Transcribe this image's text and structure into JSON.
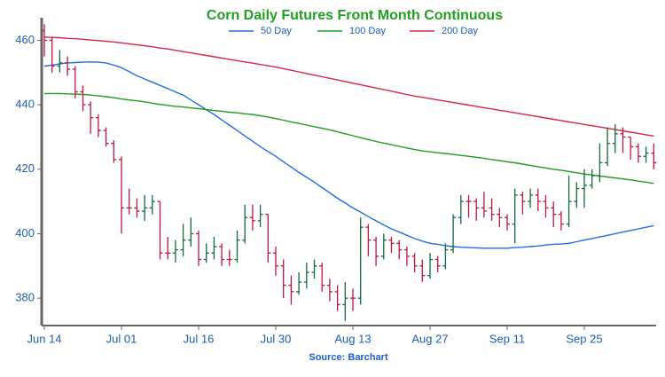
{
  "chart_data": {
    "type": "ohlc",
    "title": "Corn Daily Futures Front Month Continuous",
    "source": "Source: Barchart",
    "categories": [
      "Jun 14",
      null,
      null,
      null,
      null,
      null,
      null,
      null,
      null,
      null,
      "Jul 01",
      null,
      null,
      null,
      null,
      null,
      null,
      null,
      null,
      null,
      "Jul 16",
      null,
      null,
      null,
      null,
      null,
      null,
      null,
      null,
      null,
      "Jul 30",
      null,
      null,
      null,
      null,
      null,
      null,
      null,
      null,
      null,
      "Aug 13",
      null,
      null,
      null,
      null,
      null,
      null,
      null,
      null,
      null,
      "Aug 27",
      null,
      null,
      null,
      null,
      null,
      null,
      null,
      null,
      null,
      "Sep 11",
      null,
      null,
      null,
      null,
      null,
      null,
      null,
      null,
      null,
      "Sep 25",
      null,
      null,
      null,
      null,
      null,
      null,
      null,
      null,
      null
    ],
    "open": [
      463,
      460,
      452,
      453,
      451,
      444,
      440,
      436,
      432,
      428,
      423,
      408,
      408,
      407,
      408,
      410,
      394,
      394,
      395,
      398,
      400,
      392,
      394,
      396,
      392,
      392,
      398,
      405,
      404,
      406,
      394,
      390,
      384,
      382,
      385,
      388,
      390,
      384,
      382,
      378,
      380,
      380,
      402,
      398,
      393,
      398,
      397,
      395,
      393,
      390,
      387,
      392,
      390,
      395,
      405,
      410,
      410,
      408,
      408,
      406,
      405,
      403,
      412,
      410,
      412,
      410,
      408,
      406,
      403,
      410,
      414,
      415,
      418,
      422,
      428,
      431,
      430,
      427,
      424,
      425
    ],
    "high": [
      465,
      461,
      457,
      455,
      452,
      446,
      441,
      437,
      433,
      429,
      424,
      414,
      411,
      412,
      412,
      410,
      399,
      398,
      403,
      405,
      401,
      397,
      399,
      397,
      395,
      401,
      409,
      409,
      409,
      406,
      396,
      392,
      387,
      388,
      391,
      392,
      391,
      386,
      384,
      385,
      383,
      405,
      403,
      399,
      400,
      399,
      398,
      396,
      394,
      392,
      394,
      393,
      397,
      406,
      412,
      412,
      411,
      413,
      411,
      408,
      406,
      414,
      413,
      414,
      414,
      412,
      410,
      407,
      418,
      416,
      420,
      420,
      428,
      433,
      434,
      433,
      430,
      428,
      427,
      428
    ],
    "low": [
      455,
      450,
      450,
      449,
      442,
      438,
      431,
      430,
      427,
      422,
      400,
      406,
      405,
      404,
      406,
      392,
      392,
      391,
      393,
      396,
      390,
      391,
      392,
      390,
      390,
      391,
      397,
      401,
      402,
      391,
      387,
      380,
      378,
      381,
      383,
      386,
      382,
      379,
      376,
      373,
      376,
      378,
      393,
      390,
      392,
      394,
      392,
      390,
      388,
      385,
      386,
      388,
      389,
      394,
      403,
      405,
      404,
      405,
      404,
      402,
      401,
      397,
      406,
      408,
      407,
      405,
      402,
      401,
      402,
      408,
      408,
      414,
      416,
      421,
      425,
      425,
      423,
      422,
      422,
      420
    ],
    "close": [
      460,
      452,
      453,
      451,
      444,
      440,
      436,
      432,
      428,
      423,
      408,
      408,
      407,
      408,
      410,
      394,
      394,
      395,
      398,
      400,
      392,
      394,
      396,
      392,
      392,
      398,
      405,
      404,
      406,
      394,
      390,
      384,
      382,
      385,
      388,
      390,
      384,
      382,
      378,
      380,
      380,
      402,
      398,
      393,
      398,
      397,
      395,
      393,
      390,
      387,
      392,
      390,
      395,
      405,
      410,
      410,
      408,
      407,
      406,
      405,
      403,
      412,
      410,
      412,
      410,
      408,
      406,
      403,
      410,
      414,
      415,
      418,
      422,
      428,
      431,
      430,
      427,
      424,
      425,
      422
    ],
    "up_color": "#17693a",
    "down_color": "#c0163f",
    "series": [
      {
        "name": "50 Day",
        "color": "#1f6fdc",
        "values": [
          452,
          452.3,
          452.7,
          453,
          453.1,
          453.2,
          453.3,
          453.2,
          453,
          452.3,
          451.5,
          450.3,
          449,
          448,
          447,
          446,
          445,
          444,
          443,
          441.5,
          440,
          438.5,
          437,
          435.3,
          433.7,
          432,
          430.3,
          428.7,
          427,
          425.5,
          424,
          422.3,
          420.7,
          419,
          417.5,
          416,
          414.3,
          412.7,
          411,
          409.5,
          408,
          406.7,
          405.3,
          404,
          402.7,
          401.5,
          400.5,
          399.5,
          398.5,
          397.7,
          397,
          396.7,
          396.3,
          396,
          395.8,
          395.7,
          395.6,
          395.5,
          395.5,
          395.5,
          395.5,
          395.7,
          395.8,
          396,
          396.2,
          396.5,
          396.7,
          396.8,
          397,
          397.5,
          398,
          398.5,
          399,
          399.5,
          400,
          400.5,
          401,
          401.5,
          402,
          402.5
        ]
      },
      {
        "name": "100 Day",
        "color": "#1f9c1f",
        "values": [
          443.5,
          443.5,
          443.5,
          443.4,
          443.3,
          443.2,
          443,
          442.8,
          442.5,
          442.2,
          441.8,
          441.5,
          441.2,
          440.9,
          440.5,
          440.1,
          439.8,
          439.5,
          439.3,
          439,
          438.8,
          438.5,
          438.2,
          438,
          437.7,
          437.5,
          437.2,
          437,
          436.6,
          436.2,
          435.7,
          435.2,
          434.7,
          434.2,
          433.7,
          433.2,
          432.7,
          432.2,
          431.6,
          431,
          430.4,
          429.8,
          429.2,
          428.6,
          428.1,
          427.6,
          427.1,
          426.6,
          426.1,
          425.7,
          425.4,
          425.1,
          424.9,
          424.6,
          424.3,
          424,
          423.7,
          423.4,
          423,
          422.7,
          422.3,
          422,
          421.6,
          421.2,
          420.8,
          420.4,
          420,
          419.7,
          419.3,
          418.9,
          418.5,
          418.2,
          417.9,
          417.6,
          417.3,
          417,
          416.7,
          416.3,
          416,
          415.6
        ]
      },
      {
        "name": "200 Day",
        "color": "#d4264a",
        "values": [
          461,
          460.9,
          460.8,
          460.6,
          460.5,
          460.3,
          460.1,
          459.9,
          459.7,
          459.5,
          459.2,
          458.9,
          458.6,
          458.3,
          458,
          457.6,
          457.3,
          456.9,
          456.5,
          456.1,
          455.7,
          455.3,
          454.9,
          454.5,
          454.1,
          453.7,
          453.3,
          452.9,
          452.5,
          452.1,
          451.7,
          451.2,
          450.7,
          450.2,
          449.7,
          449.2,
          448.7,
          448.2,
          447.7,
          447.2,
          446.7,
          446.2,
          445.7,
          445.2,
          444.7,
          444.2,
          443.7,
          443.2,
          442.7,
          442.3,
          441.9,
          441.5,
          441.1,
          440.7,
          440.3,
          439.9,
          439.5,
          439.1,
          438.7,
          438.3,
          437.9,
          437.5,
          437.1,
          436.7,
          436.3,
          435.9,
          435.5,
          435.1,
          434.7,
          434.3,
          433.9,
          433.5,
          433.1,
          432.7,
          432.3,
          431.9,
          431.5,
          431.1,
          430.7,
          430.3
        ]
      }
    ],
    "ylim": [
      371.5,
      467
    ],
    "yticks": [
      380,
      400,
      420,
      440,
      460
    ]
  }
}
